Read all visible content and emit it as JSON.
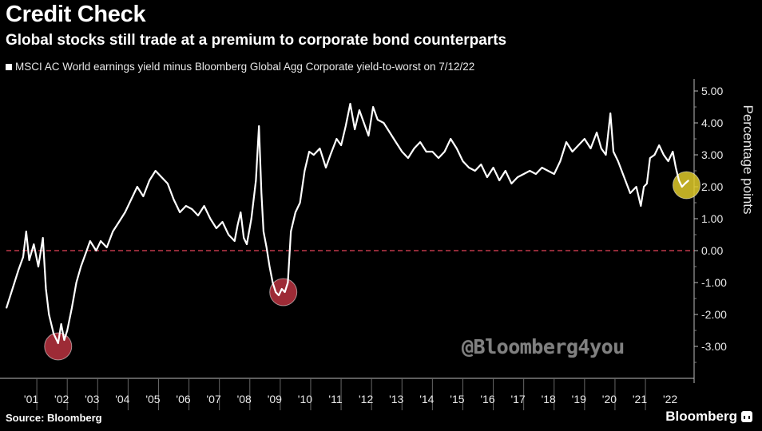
{
  "header": {
    "title": "Credit Check",
    "subtitle": "Global stocks still trade at a premium to corporate bond counterparts"
  },
  "footer": {
    "source": "Source: Bloomberg",
    "brand": "Bloomberg",
    "watermark": "@Bloomberg4you"
  },
  "chart_data": {
    "type": "line",
    "ylabel": "Percentage points",
    "ylim": [
      -4.0,
      5.5
    ],
    "yticks": [
      5.0,
      4.0,
      3.0,
      2.0,
      1.0,
      0.0,
      -1.0,
      -2.0,
      -3.0
    ],
    "ytick_labels": [
      "5.00",
      "4.00",
      "3.00",
      "2.00",
      "1.00",
      "0.00",
      "-1.00",
      "-2.00",
      "-3.00"
    ],
    "xlim": [
      2000.0,
      2022.6
    ],
    "xtick_labels": [
      "'01",
      "'02",
      "'03",
      "'04",
      "'05",
      "'06",
      "'07",
      "'08",
      "'09",
      "'10",
      "'11",
      "'12",
      "'13",
      "'14",
      "'15",
      "'16",
      "'17",
      "'18",
      "'19",
      "'20",
      "'21",
      "'22"
    ],
    "reference_line": {
      "y": 0.0,
      "style": "dashed",
      "color": "#c0394b"
    },
    "series": [
      {
        "name": "MSCI AC World earnings yield minus Bloomberg Global Agg Corporate yield-to-worst on 7/12/22",
        "color": "#ffffff",
        "points": [
          [
            2000.0,
            -1.8
          ],
          [
            2000.2,
            -1.2
          ],
          [
            2000.4,
            -0.6
          ],
          [
            2000.55,
            -0.2
          ],
          [
            2000.65,
            0.6
          ],
          [
            2000.75,
            -0.3
          ],
          [
            2000.9,
            0.2
          ],
          [
            2001.05,
            -0.5
          ],
          [
            2001.2,
            0.4
          ],
          [
            2001.3,
            -1.2
          ],
          [
            2001.4,
            -2.0
          ],
          [
            2001.55,
            -2.6
          ],
          [
            2001.7,
            -2.9
          ],
          [
            2001.8,
            -2.3
          ],
          [
            2001.9,
            -2.8
          ],
          [
            2002.0,
            -2.5
          ],
          [
            2002.15,
            -1.8
          ],
          [
            2002.3,
            -1.0
          ],
          [
            2002.45,
            -0.5
          ],
          [
            2002.6,
            -0.1
          ],
          [
            2002.75,
            0.3
          ],
          [
            2002.95,
            0.0
          ],
          [
            2003.1,
            0.3
          ],
          [
            2003.3,
            0.1
          ],
          [
            2003.5,
            0.6
          ],
          [
            2003.7,
            0.9
          ],
          [
            2003.9,
            1.2
          ],
          [
            2004.1,
            1.6
          ],
          [
            2004.3,
            2.0
          ],
          [
            2004.5,
            1.7
          ],
          [
            2004.7,
            2.2
          ],
          [
            2004.9,
            2.5
          ],
          [
            2005.1,
            2.3
          ],
          [
            2005.3,
            2.1
          ],
          [
            2005.5,
            1.6
          ],
          [
            2005.7,
            1.2
          ],
          [
            2005.9,
            1.4
          ],
          [
            2006.1,
            1.3
          ],
          [
            2006.3,
            1.1
          ],
          [
            2006.5,
            1.4
          ],
          [
            2006.7,
            1.0
          ],
          [
            2006.9,
            0.7
          ],
          [
            2007.1,
            0.9
          ],
          [
            2007.3,
            0.5
          ],
          [
            2007.5,
            0.3
          ],
          [
            2007.6,
            0.8
          ],
          [
            2007.7,
            1.2
          ],
          [
            2007.8,
            0.4
          ],
          [
            2007.9,
            0.2
          ],
          [
            2008.05,
            1.0
          ],
          [
            2008.2,
            2.2
          ],
          [
            2008.3,
            3.9
          ],
          [
            2008.38,
            1.8
          ],
          [
            2008.45,
            0.6
          ],
          [
            2008.55,
            0.1
          ],
          [
            2008.65,
            -0.5
          ],
          [
            2008.75,
            -1.0
          ],
          [
            2008.85,
            -1.3
          ],
          [
            2008.95,
            -1.4
          ],
          [
            2009.05,
            -1.2
          ],
          [
            2009.15,
            -1.3
          ],
          [
            2009.25,
            -1.0
          ],
          [
            2009.35,
            0.6
          ],
          [
            2009.5,
            1.2
          ],
          [
            2009.65,
            1.5
          ],
          [
            2009.8,
            2.5
          ],
          [
            2009.95,
            3.1
          ],
          [
            2010.1,
            3.0
          ],
          [
            2010.3,
            3.2
          ],
          [
            2010.5,
            2.6
          ],
          [
            2010.65,
            3.0
          ],
          [
            2010.85,
            3.5
          ],
          [
            2011.0,
            3.3
          ],
          [
            2011.15,
            3.9
          ],
          [
            2011.3,
            4.6
          ],
          [
            2011.45,
            3.8
          ],
          [
            2011.6,
            4.4
          ],
          [
            2011.75,
            4.0
          ],
          [
            2011.9,
            3.6
          ],
          [
            2012.05,
            4.5
          ],
          [
            2012.2,
            4.1
          ],
          [
            2012.4,
            4.0
          ],
          [
            2012.6,
            3.7
          ],
          [
            2012.8,
            3.4
          ],
          [
            2013.0,
            3.1
          ],
          [
            2013.2,
            2.9
          ],
          [
            2013.4,
            3.2
          ],
          [
            2013.6,
            3.4
          ],
          [
            2013.8,
            3.1
          ],
          [
            2014.0,
            3.1
          ],
          [
            2014.2,
            2.9
          ],
          [
            2014.4,
            3.1
          ],
          [
            2014.6,
            3.5
          ],
          [
            2014.8,
            3.2
          ],
          [
            2015.0,
            2.8
          ],
          [
            2015.2,
            2.6
          ],
          [
            2015.4,
            2.5
          ],
          [
            2015.6,
            2.7
          ],
          [
            2015.8,
            2.3
          ],
          [
            2016.0,
            2.6
          ],
          [
            2016.2,
            2.2
          ],
          [
            2016.4,
            2.5
          ],
          [
            2016.6,
            2.1
          ],
          [
            2016.8,
            2.3
          ],
          [
            2017.0,
            2.4
          ],
          [
            2017.2,
            2.5
          ],
          [
            2017.4,
            2.4
          ],
          [
            2017.6,
            2.6
          ],
          [
            2017.8,
            2.5
          ],
          [
            2018.0,
            2.4
          ],
          [
            2018.2,
            2.8
          ],
          [
            2018.4,
            3.4
          ],
          [
            2018.6,
            3.1
          ],
          [
            2018.8,
            3.3
          ],
          [
            2019.0,
            3.5
          ],
          [
            2019.2,
            3.2
          ],
          [
            2019.4,
            3.7
          ],
          [
            2019.55,
            3.2
          ],
          [
            2019.7,
            3.0
          ],
          [
            2019.85,
            4.3
          ],
          [
            2019.95,
            3.1
          ],
          [
            2020.1,
            2.8
          ],
          [
            2020.3,
            2.3
          ],
          [
            2020.5,
            1.8
          ],
          [
            2020.7,
            2.0
          ],
          [
            2020.85,
            1.4
          ],
          [
            2020.95,
            2.0
          ],
          [
            2021.05,
            2.1
          ],
          [
            2021.15,
            2.9
          ],
          [
            2021.3,
            3.0
          ],
          [
            2021.45,
            3.3
          ],
          [
            2021.6,
            3.0
          ],
          [
            2021.75,
            2.8
          ],
          [
            2021.9,
            3.1
          ],
          [
            2022.0,
            2.6
          ],
          [
            2022.1,
            2.2
          ],
          [
            2022.2,
            2.0
          ],
          [
            2022.3,
            2.1
          ],
          [
            2022.42,
            2.2
          ]
        ]
      }
    ],
    "highlights": [
      {
        "x": 2001.7,
        "y": -3.0,
        "color": "#b8323f"
      },
      {
        "x": 2009.1,
        "y": -1.3,
        "color": "#b8323f"
      },
      {
        "x": 2022.35,
        "y": 2.05,
        "color": "#e0cb2a"
      }
    ]
  }
}
